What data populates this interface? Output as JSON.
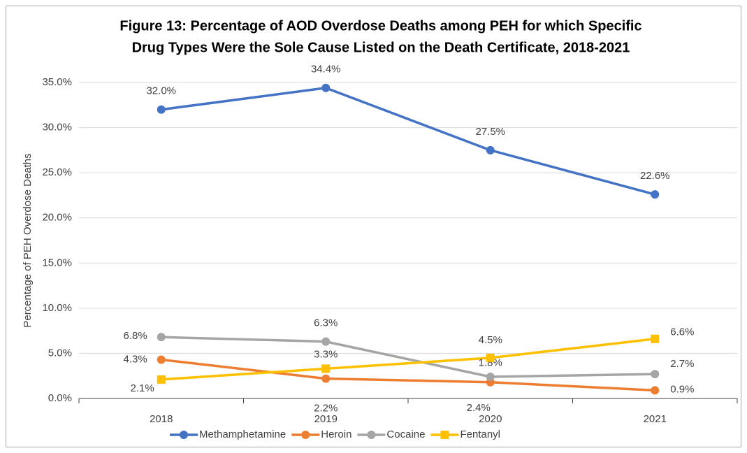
{
  "chart_data": {
    "type": "line",
    "title": [
      "Figure 13: Percentage of AOD Overdose Deaths among PEH for which Specific",
      "Drug Types Were the Sole Cause Listed on the Death Certificate, 2018-2021"
    ],
    "y_label": "Percentage of PEH Overdose Deaths",
    "categories": [
      "2018",
      "2019",
      "2020",
      "2021"
    ],
    "series": [
      {
        "name": "Methamphetamine",
        "color": "#4472c4",
        "marker": "circle",
        "values": [
          32.0,
          34.4,
          27.5,
          22.6
        ],
        "value_labels": [
          "32.0%",
          "34.4%",
          "27.5%",
          "22.6%"
        ]
      },
      {
        "name": "Heroin",
        "color": "#ed7d31",
        "marker": "circle",
        "values": [
          4.3,
          2.2,
          1.8,
          0.9
        ],
        "value_labels": [
          "4.3%",
          "2.2%",
          "1.8%",
          "0.9%"
        ]
      },
      {
        "name": "Cocaine",
        "color": "#a5a5a5",
        "marker": "circle",
        "values": [
          6.8,
          6.3,
          2.4,
          2.7
        ],
        "value_labels": [
          "6.8%",
          "6.3%",
          "2.4%",
          "2.7%"
        ]
      },
      {
        "name": "Fentanyl",
        "color": "#ffc000",
        "marker": "square",
        "values": [
          2.1,
          3.3,
          4.5,
          6.6
        ],
        "value_labels": [
          "2.1%",
          "3.3%",
          "4.5%",
          "6.6%"
        ]
      }
    ],
    "ylim": [
      0,
      35
    ],
    "yticks": [
      {
        "value": 0,
        "label": "0.0%"
      },
      {
        "value": 5,
        "label": "5.0%"
      },
      {
        "value": 10,
        "label": "10.0%"
      },
      {
        "value": 15,
        "label": "15.0%"
      },
      {
        "value": 20,
        "label": "20.0%"
      },
      {
        "value": 25,
        "label": "25.0%"
      },
      {
        "value": 30,
        "label": "30.0%"
      },
      {
        "value": 35,
        "label": "35.0%"
      }
    ],
    "grid": true,
    "legend": "bottom"
  }
}
